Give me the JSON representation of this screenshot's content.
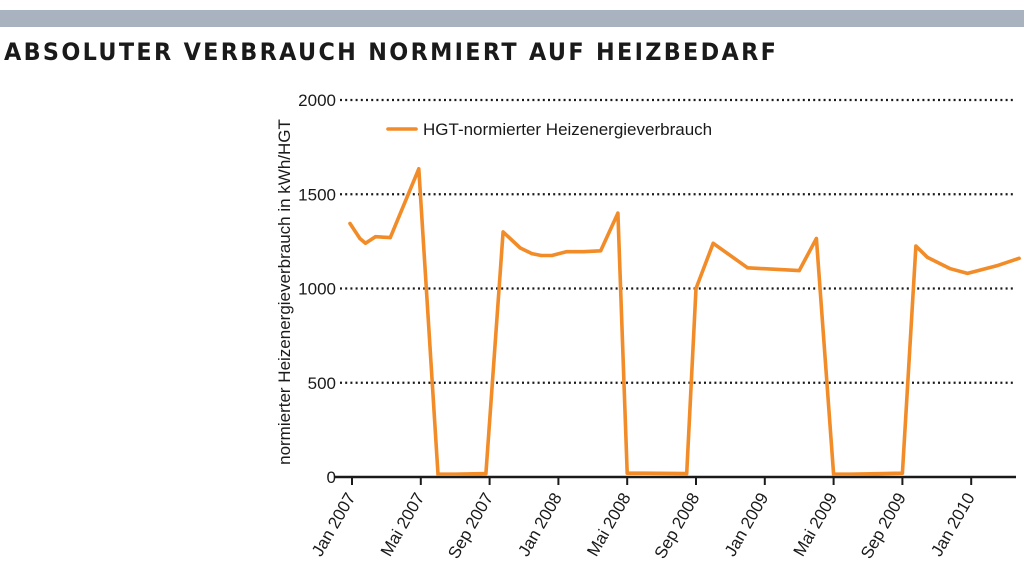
{
  "header": {
    "title": "ABSOLUTER VERBRAUCH NORMIERT AUF HEIZBEDARF",
    "bar_color": "#a8b3bf"
  },
  "chart_data": {
    "type": "line",
    "title": "ABSOLUTER VERBRAUCH NORMIERT AUF HEIZBEDARF",
    "xlabel": "",
    "ylabel": "normierter Heizenergieverbrauch in kWh/HGT",
    "ylim": [
      0,
      2000
    ],
    "yticks": [
      0,
      500,
      1000,
      1500,
      2000
    ],
    "xlim": [
      "2007-01",
      "2010-06"
    ],
    "xticks": [
      {
        "date": "2007-01",
        "label": "Jan 2007"
      },
      {
        "date": "2007-05",
        "label": "Mai 2007"
      },
      {
        "date": "2007-09",
        "label": "Sep 2007"
      },
      {
        "date": "2008-01",
        "label": "Jan 2008"
      },
      {
        "date": "2008-05",
        "label": "Mai 2008"
      },
      {
        "date": "2008-09",
        "label": "Sep 2008"
      },
      {
        "date": "2009-01",
        "label": "Jan 2009"
      },
      {
        "date": "2009-05",
        "label": "Mai 2009"
      },
      {
        "date": "2009-09",
        "label": "Sep 2009"
      },
      {
        "date": "2010-01",
        "label": "Jan 2010"
      }
    ],
    "grid": true,
    "legend": "top-left",
    "series": [
      {
        "name": "HGT-normierter Heizenergieverbrauch",
        "color": "#f28c28",
        "points": [
          {
            "x": "2006-12-28",
            "y": 1345
          },
          {
            "x": "2007-01-15",
            "y": 1265
          },
          {
            "x": "2007-01-25",
            "y": 1240
          },
          {
            "x": "2007-02-12",
            "y": 1275
          },
          {
            "x": "2007-03-08",
            "y": 1270
          },
          {
            "x": "2007-04-28",
            "y": 1635
          },
          {
            "x": "2007-06-01",
            "y": 15
          },
          {
            "x": "2007-07-01",
            "y": 15
          },
          {
            "x": "2007-08-25",
            "y": 18
          },
          {
            "x": "2007-09-25",
            "y": 1300
          },
          {
            "x": "2007-10-25",
            "y": 1215
          },
          {
            "x": "2007-11-15",
            "y": 1185
          },
          {
            "x": "2007-12-01",
            "y": 1175
          },
          {
            "x": "2007-12-20",
            "y": 1175
          },
          {
            "x": "2008-01-15",
            "y": 1195
          },
          {
            "x": "2008-02-15",
            "y": 1195
          },
          {
            "x": "2008-03-15",
            "y": 1200
          },
          {
            "x": "2008-04-15",
            "y": 1400
          },
          {
            "x": "2008-05-01",
            "y": 20
          },
          {
            "x": "2008-06-01",
            "y": 20
          },
          {
            "x": "2008-08-15",
            "y": 18
          },
          {
            "x": "2008-09-01",
            "y": 1000
          },
          {
            "x": "2008-10-01",
            "y": 1240
          },
          {
            "x": "2008-12-01",
            "y": 1110
          },
          {
            "x": "2009-03-01",
            "y": 1095
          },
          {
            "x": "2009-04-01",
            "y": 1265
          },
          {
            "x": "2009-05-01",
            "y": 15
          },
          {
            "x": "2009-06-01",
            "y": 15
          },
          {
            "x": "2009-09-01",
            "y": 20
          },
          {
            "x": "2009-09-25",
            "y": 1225
          },
          {
            "x": "2009-10-15",
            "y": 1165
          },
          {
            "x": "2009-11-25",
            "y": 1105
          },
          {
            "x": "2009-12-25",
            "y": 1080
          },
          {
            "x": "2010-02-15",
            "y": 1120
          },
          {
            "x": "2010-03-25",
            "y": 1160
          }
        ]
      }
    ]
  }
}
